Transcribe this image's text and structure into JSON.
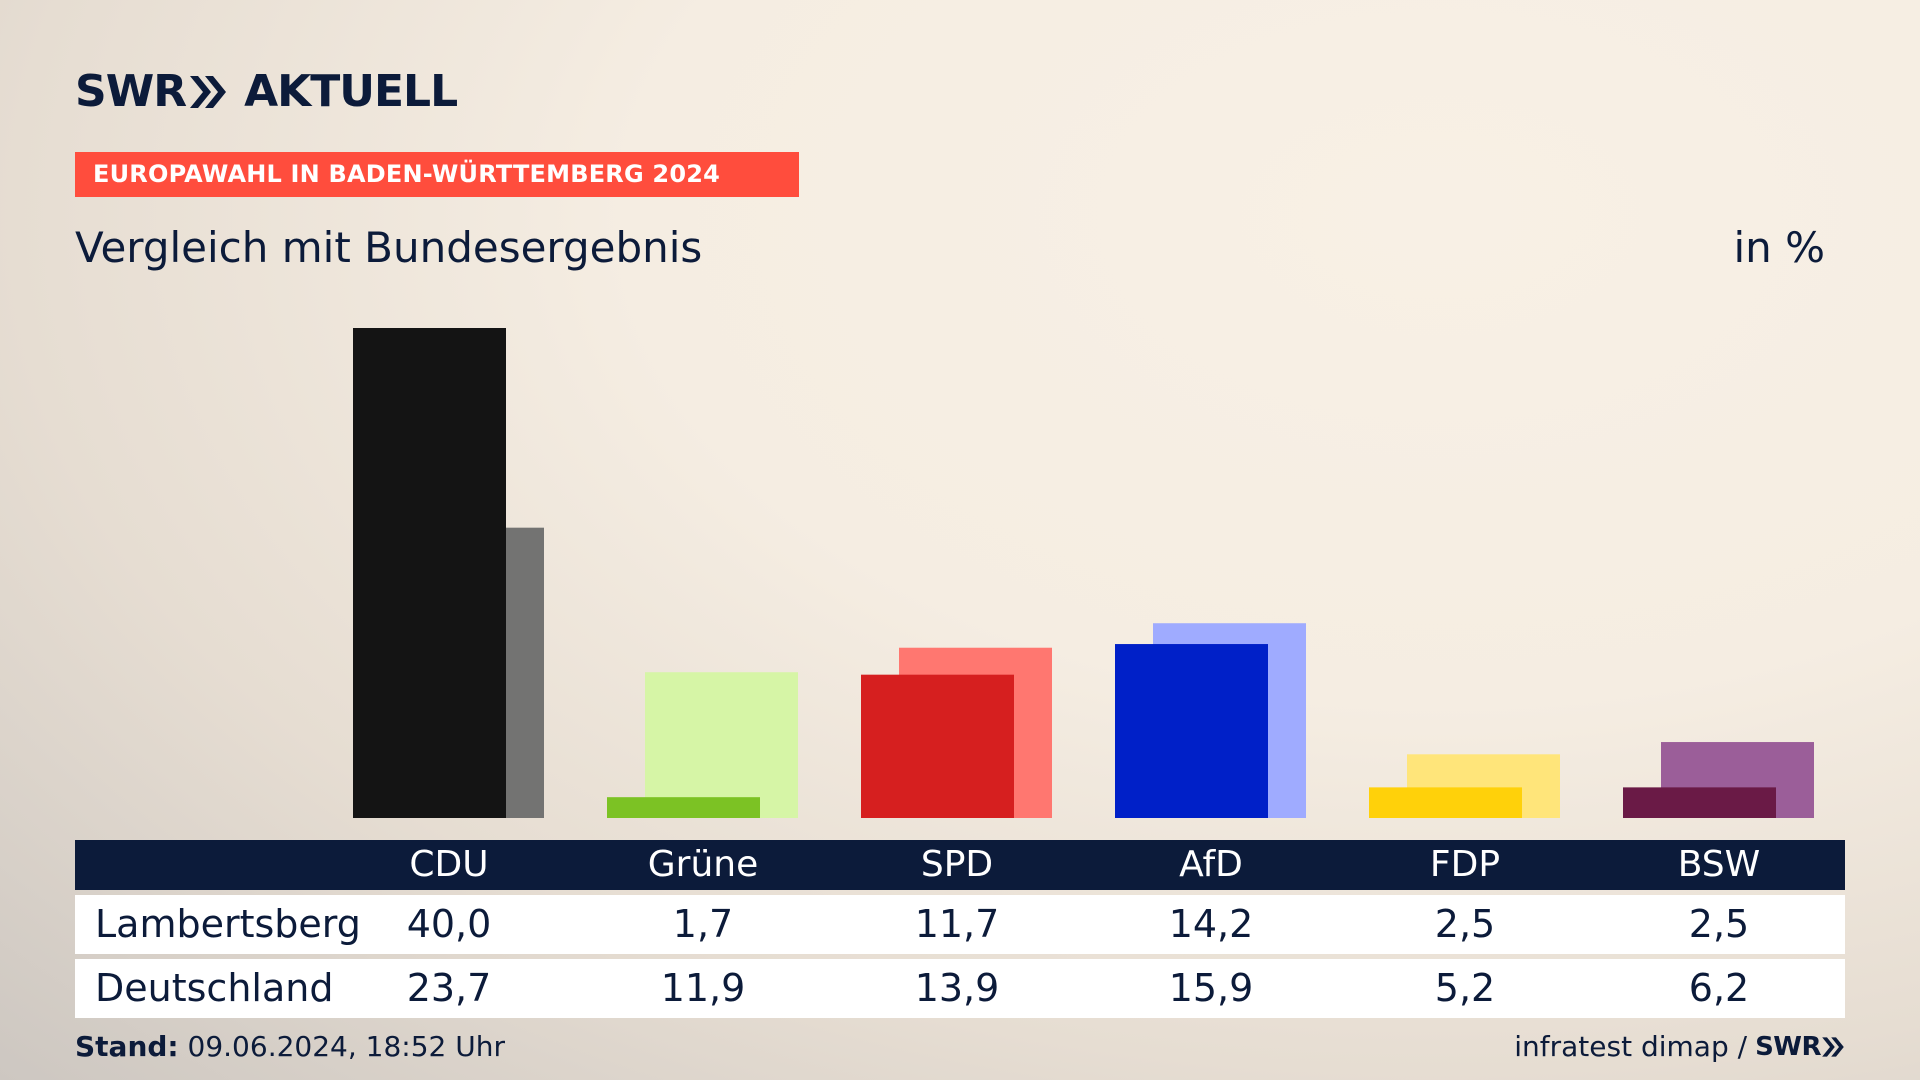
{
  "branding": {
    "logo_part1": "SWR",
    "logo_part2": "AKTUELL",
    "footer_logo": "SWR",
    "navy": "#0c1b3a",
    "accent": "#ff4d3d"
  },
  "header": {
    "kicker": "EUROPAWAHL IN BADEN-WÜRTTEMBERG 2024",
    "subtitle": "Vergleich mit Bundesergebnis",
    "unit": "in %"
  },
  "chart_data": {
    "type": "bar",
    "categories": [
      "CDU",
      "Grüne",
      "SPD",
      "AfD",
      "FDP",
      "BSW"
    ],
    "series": [
      {
        "name": "Lambertsberg",
        "values": [
          40.0,
          1.7,
          11.7,
          14.2,
          2.5,
          2.5
        ],
        "colors": [
          "#141414",
          "#7cc224",
          "#d61f1f",
          "#0020c8",
          "#ffd10a",
          "#6a1a46"
        ]
      },
      {
        "name": "Deutschland",
        "values": [
          23.7,
          11.9,
          13.9,
          15.9,
          5.2,
          6.2
        ],
        "colors": [
          "#737372",
          "#d6f5a6",
          "#ff7770",
          "#9fabff",
          "#ffe57a",
          "#9b5e99"
        ]
      }
    ],
    "ylim": [
      0,
      40
    ],
    "grid": false,
    "legend": "none"
  },
  "table": {
    "headers": [
      "CDU",
      "Grüne",
      "SPD",
      "AfD",
      "FDP",
      "BSW"
    ],
    "rows": [
      {
        "label": "Lambertsberg",
        "values": [
          "40,0",
          "1,7",
          "11,7",
          "14,2",
          "2,5",
          "2,5"
        ]
      },
      {
        "label": "Deutschland",
        "values": [
          "23,7",
          "11,9",
          "13,9",
          "15,9",
          "5,2",
          "6,2"
        ]
      }
    ]
  },
  "footer": {
    "stand_label": "Stand:",
    "stand_value": "09.06.2024, 18:52 Uhr",
    "source": "infratest dimap /"
  }
}
